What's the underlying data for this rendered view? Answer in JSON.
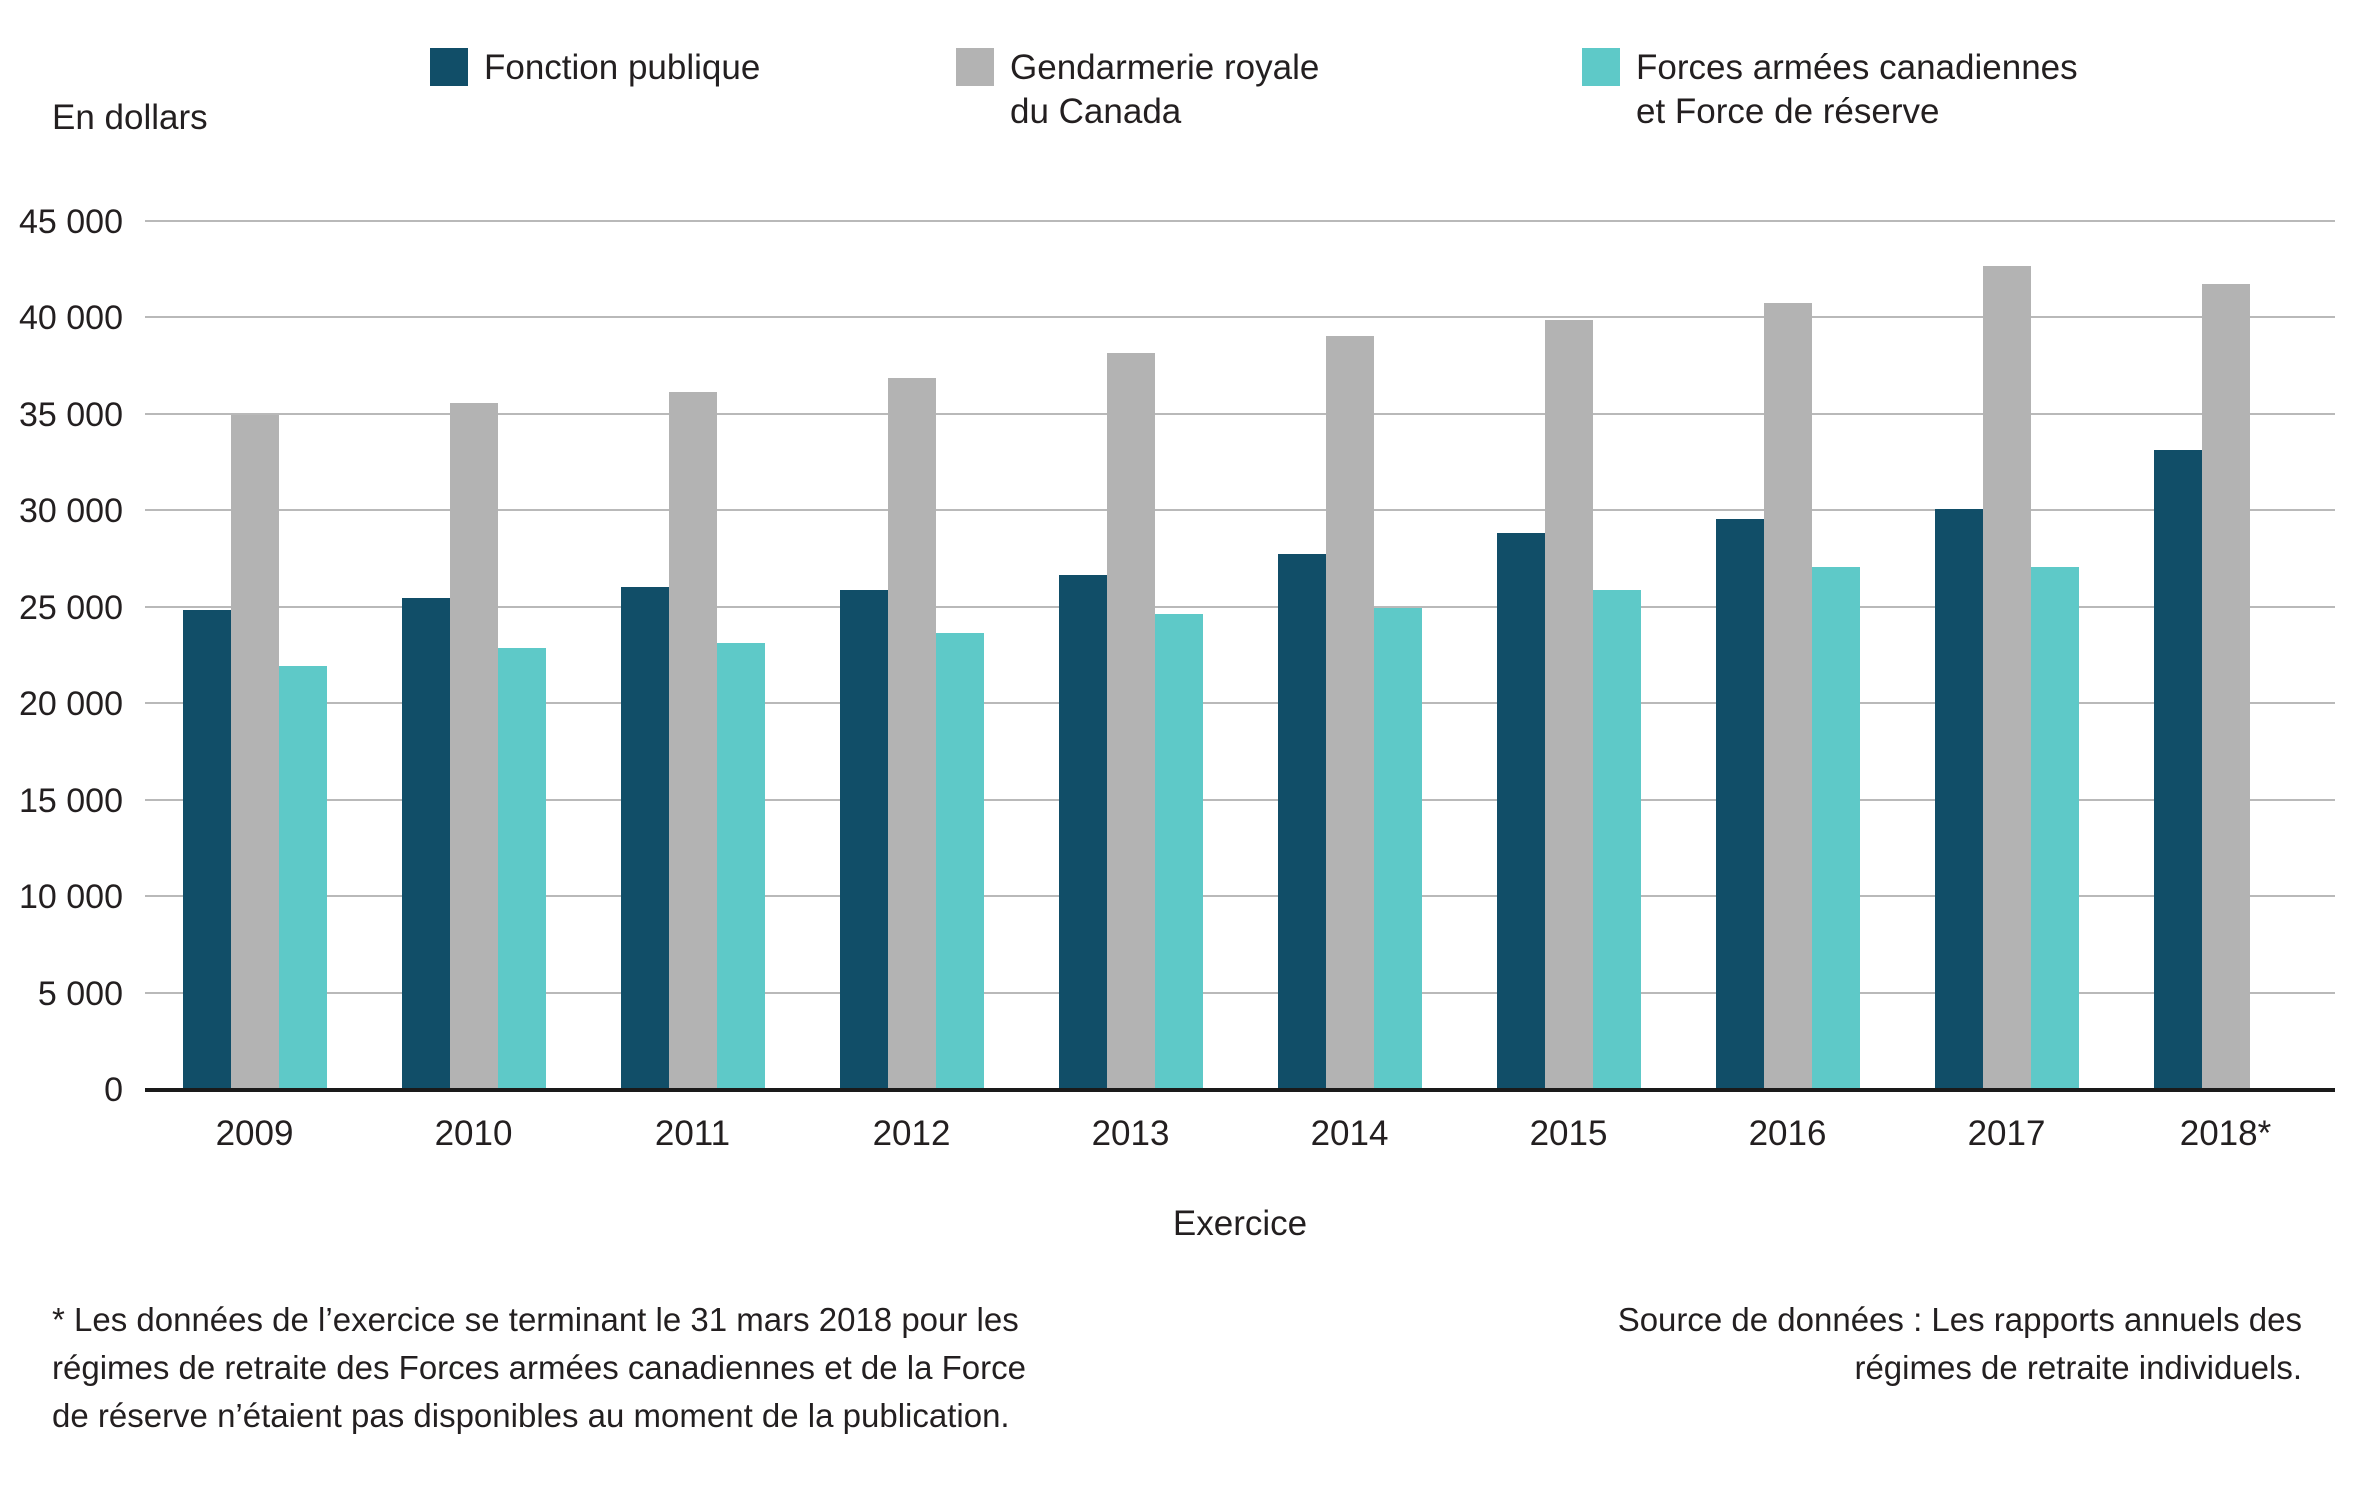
{
  "chart_data": {
    "type": "bar",
    "title": "",
    "categories": [
      "2009",
      "2010",
      "2011",
      "2012",
      "2013",
      "2014",
      "2015",
      "2016",
      "2017",
      "2018*"
    ],
    "series": [
      {
        "name": "Fonction publique",
        "color": "#114e68",
        "values": [
          24900,
          25500,
          26100,
          25900,
          26700,
          27800,
          28900,
          29600,
          30100,
          33200
        ]
      },
      {
        "name": "Gendarmerie royale du Canada",
        "color": "#b3b3b3",
        "values": [
          35000,
          35600,
          36200,
          36900,
          38200,
          39100,
          39900,
          40800,
          42700,
          41800
        ]
      },
      {
        "name": "Forces armées canadiennes et Force de réserve",
        "color": "#5ec9c8",
        "values": [
          22000,
          22900,
          23200,
          23700,
          24700,
          25000,
          25900,
          27100,
          27100,
          null
        ]
      }
    ],
    "xlabel": "Exercice",
    "ylabel": "En dollars",
    "ylim": [
      0,
      45000
    ],
    "grid": true,
    "legend_position": "top",
    "y_ticks": [
      {
        "label": "45 000",
        "value": 45000
      },
      {
        "label": "40 000",
        "value": 40000
      },
      {
        "label": "35 000",
        "value": 35000
      },
      {
        "label": "30 000",
        "value": 30000
      },
      {
        "label": "25 000",
        "value": 25000
      },
      {
        "label": "20 000",
        "value": 20000
      },
      {
        "label": "15 000",
        "value": 15000
      },
      {
        "label": "10 000",
        "value": 10000
      },
      {
        "label": "5 000",
        "value": 5000
      },
      {
        "label": "0",
        "value": 0
      }
    ]
  },
  "legend": {
    "items": [
      {
        "label": "Fonction publique",
        "color": "#114e68"
      },
      {
        "label": "Gendarmerie royale\ndu Canada",
        "color": "#b3b3b3"
      },
      {
        "label": "Forces armées canadiennes\net Force de réserve",
        "color": "#5ec9c8"
      }
    ]
  },
  "footnote": "* Les données de l’exercice se terminant le 31 mars 2018 pour les\nrégimes de retraite des Forces armées canadiennes et de la Force\nde réserve n’étaient pas disponibles au moment de la publication.",
  "source": "Source de données : Les rapports annuels des\nrégimes de retraite individuels."
}
